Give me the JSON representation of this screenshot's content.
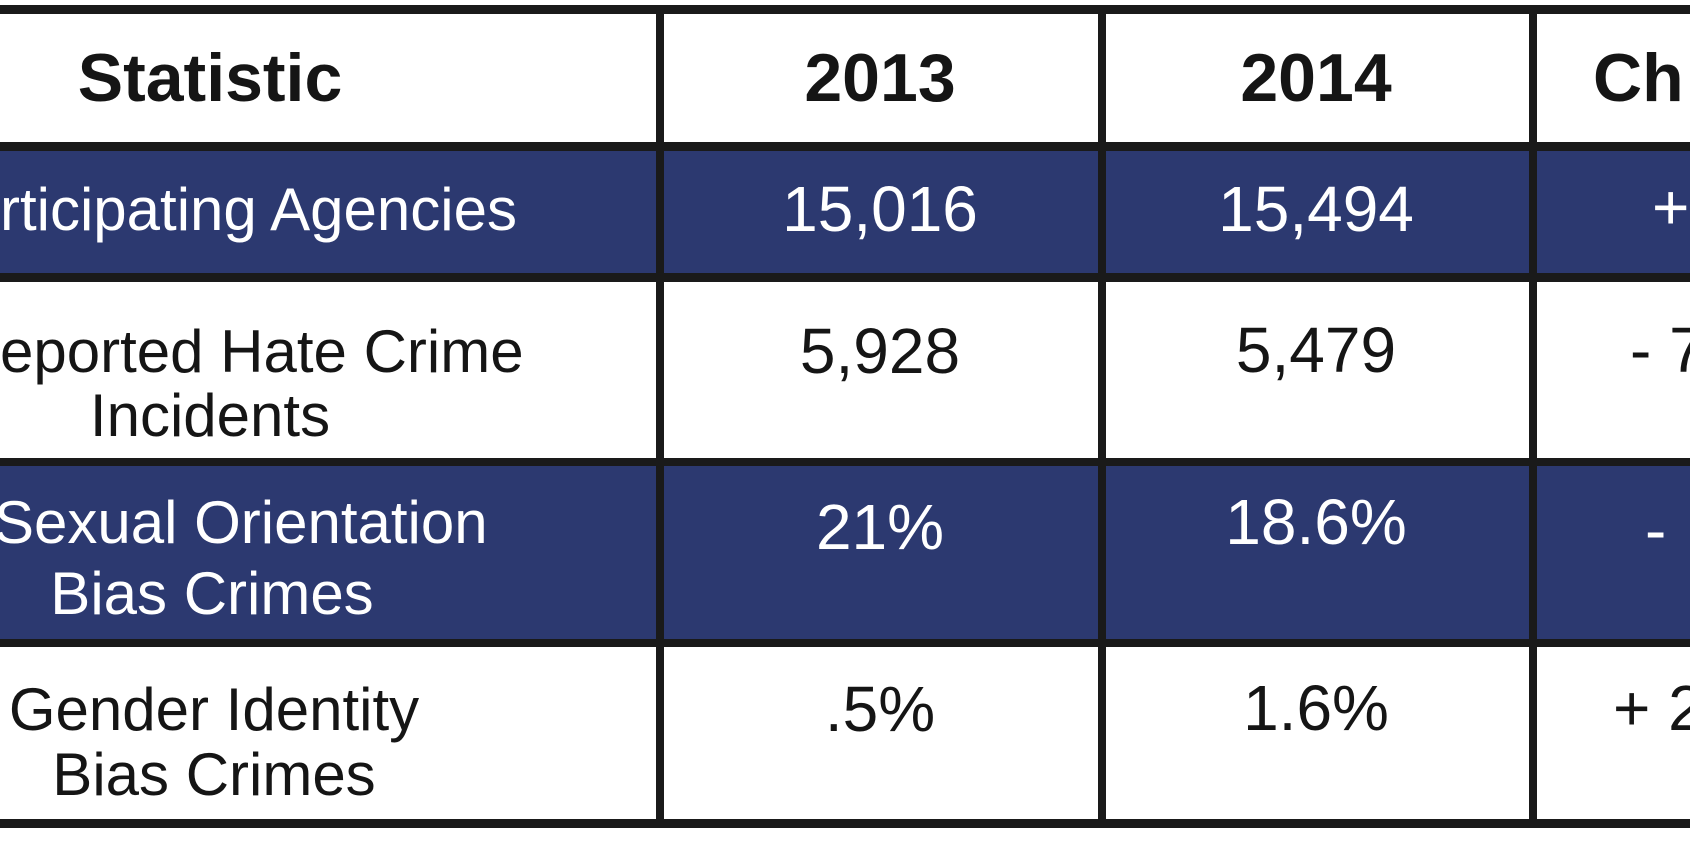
{
  "colors": {
    "row_highlight": "#2c3970",
    "grid_border": "#1a1a1a",
    "text_dark": "#151515",
    "text_light": "#ffffff",
    "background": "#ffffff"
  },
  "table": {
    "header": {
      "statistic": "Statistic",
      "col_2013": "2013",
      "col_2014": "2014",
      "change": "Ch"
    },
    "rows": [
      {
        "label_line1": "rticipating Agencies",
        "label_line2": "",
        "v2013": "15,016",
        "v2014": "15,494",
        "change": "+",
        "highlighted": true
      },
      {
        "label_line1": "eported Hate Crime",
        "label_line2": "Incidents",
        "v2013": "5,928",
        "v2014": "5,479",
        "change": "- 7",
        "highlighted": false
      },
      {
        "label_line1": "Sexual Orientation",
        "label_line2": "Bias Crimes",
        "v2013": "21%",
        "v2014": "18.6%",
        "change": "-",
        "highlighted": true
      },
      {
        "label_line1": "Gender Identity",
        "label_line2": "Bias Crimes",
        "v2013": ".5%",
        "v2014": "1.6%",
        "change": "+ 2",
        "highlighted": false
      }
    ]
  },
  "chart_data": {
    "type": "table",
    "columns": [
      "Statistic",
      "2013",
      "2014",
      "Ch"
    ],
    "rows": [
      [
        "rticipating Agencies",
        "15,016",
        "15,494",
        "+"
      ],
      [
        "eported Hate Crime Incidents",
        "5,928",
        "5,479",
        "- 7"
      ],
      [
        "Sexual Orientation Bias Crimes",
        "21%",
        "18.6%",
        "-"
      ],
      [
        "Gender Identity Bias Crimes",
        ".5%",
        "1.6%",
        "+ 2"
      ]
    ]
  }
}
